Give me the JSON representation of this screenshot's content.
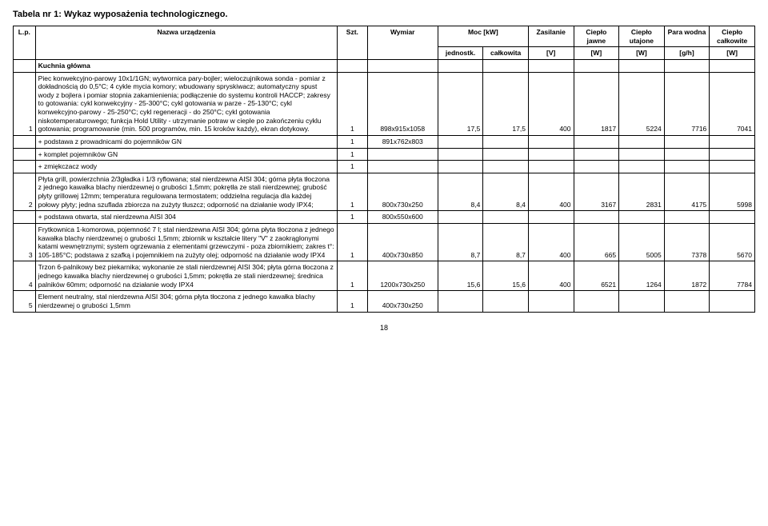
{
  "title": "Tabela nr 1: Wykaz wyposażenia technologicznego.",
  "header": {
    "lp": "L.p.",
    "nazwa": "Nazwa urządzenia",
    "szt": "Szt.",
    "wymiar": "Wymiar",
    "moc": "Moc [kW]",
    "moc_j": "jednostk.",
    "moc_c": "całkowita",
    "zasilanie": "Zasilanie",
    "zasilanie_u": "[V]",
    "c1a": "Ciepło jawne",
    "c1b": "[W]",
    "c2a": "Ciepło utajone",
    "c2b": "[W]",
    "c3a": "Para wodna",
    "c3b": "[g/h]",
    "c4a": "Ciepło całkowite",
    "c4b": "[W]"
  },
  "section": "Kuchnia główna",
  "rows": {
    "r1_desc": "Piec konwekcyjno-parowy 10x1/1GN; wytwornica pary-bojler; wieloczujnikowa sonda - pomiar z dokładnością do 0,5°C; 4 cykle mycia komory; wbudowany spryskiwacz; automatyczny spust wody z bojlera i pomiar stopnia zakamienienia; podłączenie do systemu kontroli HACCP; zakresy to gotowania: cykl konwekcyjny - 25-300°C; cykl gotowania w parze - 25-130°C; cykl konwekcyjno-parowy - 25-250°C; cykl regeneracji - do 250°C; cykl gotowania niskotemperaturowego; funkcja Hold Utility - utrzymanie potraw w cieple po zakończeniu cyklu gotowania; programowanie (min. 500 programów, min. 15 kroków każdy), ekran dotykowy.",
    "r1": {
      "lp": "1",
      "szt": "1",
      "wymiar": "898x915x1058",
      "m1": "17,5",
      "m2": "17,5",
      "zas": "400",
      "c1": "1817",
      "c2": "5224",
      "c3": "7716",
      "c4": "7041"
    },
    "r1a": {
      "name": "+ podstawa z prowadnicami do pojemników GN",
      "szt": "1",
      "wymiar": "891x762x803"
    },
    "r1b": {
      "name": "+ komplet pojemników GN",
      "szt": "1"
    },
    "r1c": {
      "name": "+ zmiękczacz wody",
      "szt": "1"
    },
    "r2_desc": "Płyta grill, powierzchnia 2/3gładka i 1/3 ryflowana; stal nierdzewna AISI 304; górna płyta tłoczona z jednego kawałka blachy nierdzewnej o grubości 1,5mm; pokrętła ze stali nierdzewnej; grubość płyty grillowej 12mm; temperatura regulowana termostatem; oddzielna regulacja dla każdej połowy płyty; jedna szuflada zbiorcza na zużyty tłuszcz; odporność na działanie wody IPX4;",
    "r2": {
      "lp": "2",
      "szt": "1",
      "wymiar": "800x730x250",
      "m1": "8,4",
      "m2": "8,4",
      "zas": "400",
      "c1": "3167",
      "c2": "2831",
      "c3": "4175",
      "c4": "5998"
    },
    "r2a": {
      "name": "+ podstawa otwarta, stal nierdzewna AISI 304",
      "szt": "1",
      "wymiar": "800x550x600"
    },
    "r3_desc": "Frytkownica 1-komorowa, pojemność 7 l; stal nierdzewna AISI 304; górna płyta tłoczona z jednego kawałka blachy nierdzewnej o grubości 1,5mm; zbiornik w kształcie litery \"V\" z zaokrąglonymi katami wewnętrznymi; system ogrzewania z elementami grzewczymi - poza zbiornikiem; zakres t°: 105-185°C; podstawa z szafką i pojemnikiem na zużyty olej; odporność na działanie wody IPX4",
    "r3": {
      "lp": "3",
      "szt": "1",
      "wymiar": "400x730x850",
      "m1": "8,7",
      "m2": "8,7",
      "zas": "400",
      "c1": "665",
      "c2": "5005",
      "c3": "7378",
      "c4": "5670"
    },
    "r4_desc": "Trzon 6-palnikowy bez piekarnika; wykonanie ze stali nierdzewnej AISI 304; płyta górna tłoczona z jednego kawałka blachy nierdzewnej o grubości 1,5mm; pokrętła ze stali nierdzewnej; średnica palników 60mm; odporność na działanie wody IPX4",
    "r4": {
      "lp": "4",
      "szt": "1",
      "wymiar": "1200x730x250",
      "m1": "15,6",
      "m2": "15,6",
      "zas": "400",
      "c1": "6521",
      "c2": "1264",
      "c3": "1872",
      "c4": "7784"
    },
    "r5_desc": "Element neutralny, stal nierdzewna AISI 304; górna płyta tłoczona z jednego kawałka blachy nierdzewnej o grubości 1,5mm",
    "r5": {
      "lp": "5",
      "szt": "1",
      "wymiar": "400x730x250"
    }
  },
  "page": "18"
}
